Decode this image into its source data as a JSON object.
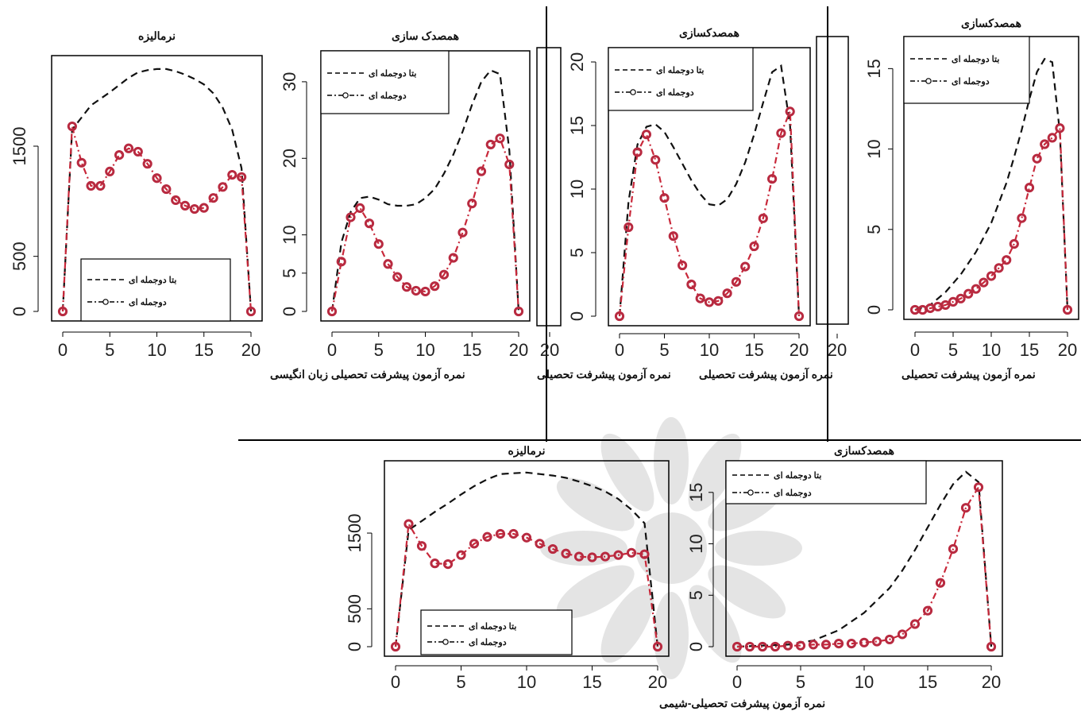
{
  "figure": {
    "watermark": "",
    "colors": {
      "dashed_series": "#111111",
      "circle_series": "#c8283a",
      "circle_marker": "#b82a40"
    }
  },
  "legend_labels": {
    "beta_binomial": "بتا دوجمله ای",
    "binomial": "دوجمله ای"
  },
  "chart_data": [
    {
      "type": "line",
      "title": "نرمالیزه",
      "xlabel": "نمره آزمون پیشرفت تحصیلی زبان انگیسی",
      "ylabel": "",
      "xlim": [
        0,
        20
      ],
      "ylim": [
        0,
        2250
      ],
      "xticks": [
        0,
        5,
        10,
        15,
        20
      ],
      "yticks": [
        0,
        500,
        1500
      ],
      "legend_position": "bottom-center",
      "series": [
        {
          "name": "بتا دوجمله ای",
          "style": "dashed",
          "x": [
            0,
            1,
            3,
            5,
            7,
            8,
            9,
            10,
            11,
            12,
            13,
            14,
            15,
            16,
            17,
            18,
            19,
            20
          ],
          "y": [
            0,
            1650,
            1870,
            1990,
            2120,
            2170,
            2190,
            2200,
            2200,
            2180,
            2150,
            2110,
            2060,
            1980,
            1850,
            1650,
            1300,
            0
          ]
        },
        {
          "name": "دوجمله ای",
          "style": "circles",
          "x": [
            0,
            1,
            2,
            3,
            4,
            5,
            6,
            7,
            8,
            9,
            10,
            11,
            12,
            13,
            14,
            15,
            16,
            17,
            18,
            19,
            20
          ],
          "y": [
            0,
            1680,
            1350,
            1140,
            1140,
            1270,
            1420,
            1480,
            1450,
            1340,
            1210,
            1110,
            1010,
            960,
            930,
            940,
            1030,
            1130,
            1240,
            1220,
            0
          ]
        }
      ]
    },
    {
      "type": "line",
      "title": "همصدک سازی",
      "xlabel": "",
      "ylabel": "",
      "xlim": [
        0,
        20
      ],
      "ylim": [
        0,
        33
      ],
      "xticks": [
        0,
        5,
        10,
        15,
        20
      ],
      "yticks": [
        0,
        5,
        10,
        20,
        30
      ],
      "legend_position": "top-left",
      "series": [
        {
          "name": "بتا دوجمله ای",
          "style": "dashed",
          "x": [
            0,
            1,
            2,
            3,
            4,
            5,
            6,
            7,
            8,
            9,
            10,
            11,
            12,
            13,
            14,
            15,
            16,
            17,
            18,
            19,
            20
          ],
          "y": [
            0,
            9,
            13,
            14.8,
            15,
            14.6,
            14,
            13.8,
            13.8,
            14,
            14.8,
            16,
            18,
            20.5,
            23.5,
            27,
            30,
            31.5,
            31,
            21,
            0
          ]
        },
        {
          "name": "دوجمله ای",
          "style": "circles",
          "x": [
            0,
            1,
            2,
            3,
            4,
            5,
            6,
            7,
            8,
            9,
            10,
            11,
            12,
            13,
            14,
            15,
            16,
            17,
            18,
            19,
            20
          ],
          "y": [
            0,
            6.5,
            12.3,
            13.5,
            11.5,
            8.8,
            6.2,
            4.5,
            3.2,
            2.7,
            2.6,
            3.3,
            4.8,
            7,
            10.3,
            14.1,
            18.3,
            21.8,
            22.6,
            19.2,
            0
          ]
        }
      ]
    },
    {
      "type": "line",
      "title": "",
      "xlabel": "نمره آزمون پیشرفت تحصیلی",
      "ylabel": "",
      "xlim": [
        0,
        20
      ],
      "ylim": [
        0,
        26
      ],
      "xticks": [
        20
      ],
      "yticks": [],
      "legend_position": "",
      "series": []
    },
    {
      "type": "line",
      "title": "همصدکسازی",
      "xlabel": "نمره آزمون پیشرفت تحصیلی",
      "ylabel": "",
      "xlim": [
        0,
        20
      ],
      "ylim": [
        0,
        20.5
      ],
      "xticks": [
        0,
        5,
        10,
        15,
        20
      ],
      "yticks": [
        0,
        5,
        10,
        15,
        20
      ],
      "legend_position": "top-left",
      "series": [
        {
          "name": "بتا دوجمله ای",
          "style": "dashed",
          "x": [
            0,
            1,
            2,
            3,
            4,
            5,
            6,
            7,
            8,
            9,
            10,
            11,
            12,
            13,
            14,
            15,
            16,
            17,
            18,
            19,
            20
          ],
          "y": [
            0,
            9,
            13.5,
            14.9,
            15.1,
            14.5,
            13.3,
            12,
            10.7,
            9.6,
            8.8,
            8.7,
            9.2,
            10.4,
            12.1,
            14.3,
            16.8,
            19.2,
            19.7,
            15,
            0
          ]
        },
        {
          "name": "دوجمله ای",
          "style": "circles",
          "x": [
            0,
            1,
            2,
            3,
            4,
            5,
            6,
            7,
            8,
            9,
            10,
            11,
            12,
            13,
            14,
            15,
            16,
            17,
            18,
            19,
            20
          ],
          "y": [
            0,
            7,
            12.9,
            14.3,
            12.3,
            9.3,
            6.3,
            4,
            2.5,
            1.4,
            1.1,
            1.2,
            1.8,
            2.7,
            3.9,
            5.5,
            7.7,
            10.8,
            14.4,
            16.1,
            0
          ]
        }
      ]
    },
    {
      "type": "line",
      "title": "",
      "xlabel": "",
      "ylabel": "",
      "xlim": [
        0,
        20
      ],
      "ylim": [
        0,
        15
      ],
      "xticks": [
        20
      ],
      "yticks": [],
      "legend_position": "",
      "series": []
    },
    {
      "type": "line",
      "title": "همصدکسازی",
      "xlabel": "نمره آزمون پیشرفت تحصیلی",
      "ylabel": "",
      "xlim": [
        0,
        20
      ],
      "ylim": [
        0,
        16.5
      ],
      "xticks": [
        0,
        5,
        10,
        15,
        20
      ],
      "yticks": [
        0,
        5,
        10,
        15
      ],
      "legend_position": "top-left",
      "series": [
        {
          "name": "بتا دوجمله ای",
          "style": "dashed",
          "x": [
            0,
            2,
            4,
            6,
            8,
            10,
            12,
            13,
            14,
            15,
            16,
            17,
            18,
            19,
            20
          ],
          "y": [
            0,
            0.3,
            1.1,
            2.2,
            3.6,
            5.4,
            7.9,
            9.5,
            11.2,
            13.1,
            14.8,
            15.6,
            15.4,
            11,
            0
          ]
        },
        {
          "name": "دوجمله ای",
          "style": "circles",
          "x": [
            0,
            1,
            2,
            3,
            4,
            5,
            6,
            7,
            8,
            9,
            10,
            11,
            12,
            13,
            14,
            15,
            16,
            17,
            18,
            19,
            20
          ],
          "y": [
            0,
            0,
            0.1,
            0.2,
            0.3,
            0.5,
            0.7,
            1,
            1.3,
            1.7,
            2.1,
            2.6,
            3.1,
            4.1,
            5.7,
            7.6,
            9.4,
            10.3,
            10.7,
            11.3,
            0
          ]
        }
      ]
    },
    {
      "type": "line",
      "title": "نرمالیزه",
      "xlabel": "",
      "ylabel": "",
      "xlim": [
        0,
        20
      ],
      "ylim": [
        0,
        2350
      ],
      "xticks": [
        0,
        5,
        10,
        15,
        20
      ],
      "yticks": [
        0,
        500,
        1500
      ],
      "legend_position": "bottom-center",
      "series": [
        {
          "name": "بتا دوجمله ای",
          "style": "dashed",
          "x": [
            0,
            1,
            2,
            3,
            4,
            5,
            6,
            7,
            8,
            9,
            10,
            11,
            12,
            13,
            14,
            15,
            16,
            17,
            18,
            19,
            20
          ],
          "y": [
            0,
            1540,
            1660,
            1780,
            1890,
            2010,
            2120,
            2210,
            2280,
            2290,
            2300,
            2280,
            2260,
            2230,
            2180,
            2120,
            2050,
            1950,
            1810,
            1630,
            0
          ]
        },
        {
          "name": "دوجمله ای",
          "style": "circles",
          "x": [
            0,
            1,
            2,
            3,
            4,
            5,
            6,
            7,
            8,
            9,
            10,
            11,
            12,
            13,
            14,
            15,
            16,
            17,
            18,
            19,
            20
          ],
          "y": [
            0,
            1620,
            1330,
            1100,
            1090,
            1210,
            1360,
            1450,
            1490,
            1490,
            1440,
            1360,
            1290,
            1230,
            1190,
            1180,
            1190,
            1210,
            1240,
            1220,
            0
          ]
        }
      ]
    },
    {
      "type": "line",
      "title": "همصدکسازی",
      "xlabel": "نمره آزمون پیشرفت تحصیلی-شیمی",
      "ylabel": "",
      "xlim": [
        0,
        20
      ],
      "ylim": [
        0,
        17.3
      ],
      "xticks": [
        0,
        5,
        10,
        15,
        20
      ],
      "yticks": [
        0,
        5,
        10,
        15
      ],
      "legend_position": "top-left",
      "series": [
        {
          "name": "بتا دوجمله ای",
          "style": "dashed",
          "x": [
            0,
            4,
            6,
            8,
            10,
            12,
            13,
            14,
            15,
            16,
            17,
            18,
            19,
            20
          ],
          "y": [
            0,
            0.2,
            0.6,
            1.6,
            3.3,
            5.7,
            7.4,
            9.4,
            11.6,
            13.8,
            15.8,
            17,
            16,
            0
          ]
        },
        {
          "name": "دوجمله ای",
          "style": "circles",
          "x": [
            0,
            1,
            2,
            3,
            4,
            5,
            6,
            7,
            8,
            9,
            10,
            11,
            12,
            13,
            14,
            15,
            16,
            17,
            18,
            19,
            20
          ],
          "y": [
            0,
            0,
            0,
            0,
            0.1,
            0.1,
            0.2,
            0.2,
            0.3,
            0.3,
            0.4,
            0.5,
            0.7,
            1.2,
            2.2,
            3.5,
            6.2,
            9.5,
            13.5,
            15.5,
            0
          ]
        }
      ]
    }
  ]
}
